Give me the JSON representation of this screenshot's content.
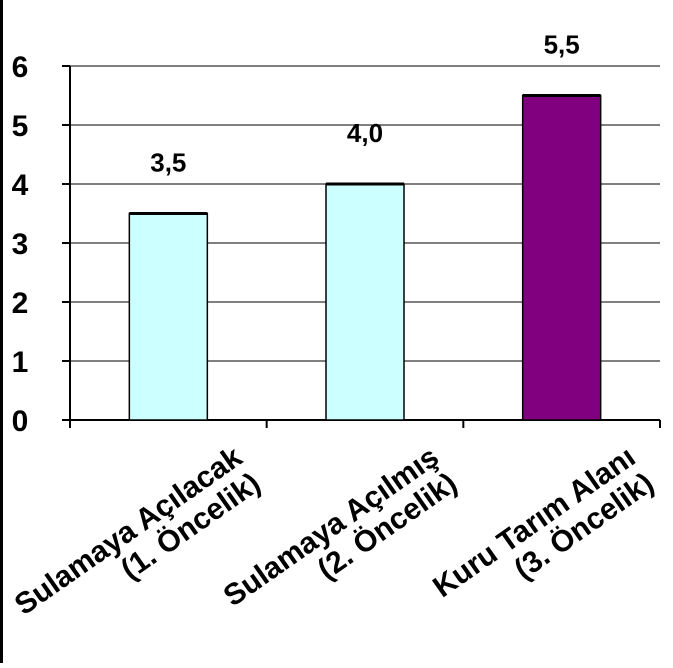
{
  "chart_data": {
    "type": "bar",
    "categories": [
      [
        "Sulamaya Açılacak",
        "(1. Öncelik)"
      ],
      [
        "Sulamaya Açılmış",
        "(2. Öncelik)"
      ],
      [
        "Kuru Tarım Alanı",
        "(3. Öncelik)"
      ]
    ],
    "values": [
      3.5,
      4.0,
      5.5
    ],
    "data_labels": [
      "3,5",
      "4,0",
      "5,5"
    ],
    "colors": [
      "#ccffff",
      "#ccffff",
      "#800080"
    ],
    "title": "",
    "xlabel": "",
    "ylabel": "",
    "ylim": [
      0,
      6
    ],
    "yticks": [
      0,
      1,
      2,
      3,
      4,
      5,
      6
    ],
    "grid": true,
    "legend": "none"
  }
}
